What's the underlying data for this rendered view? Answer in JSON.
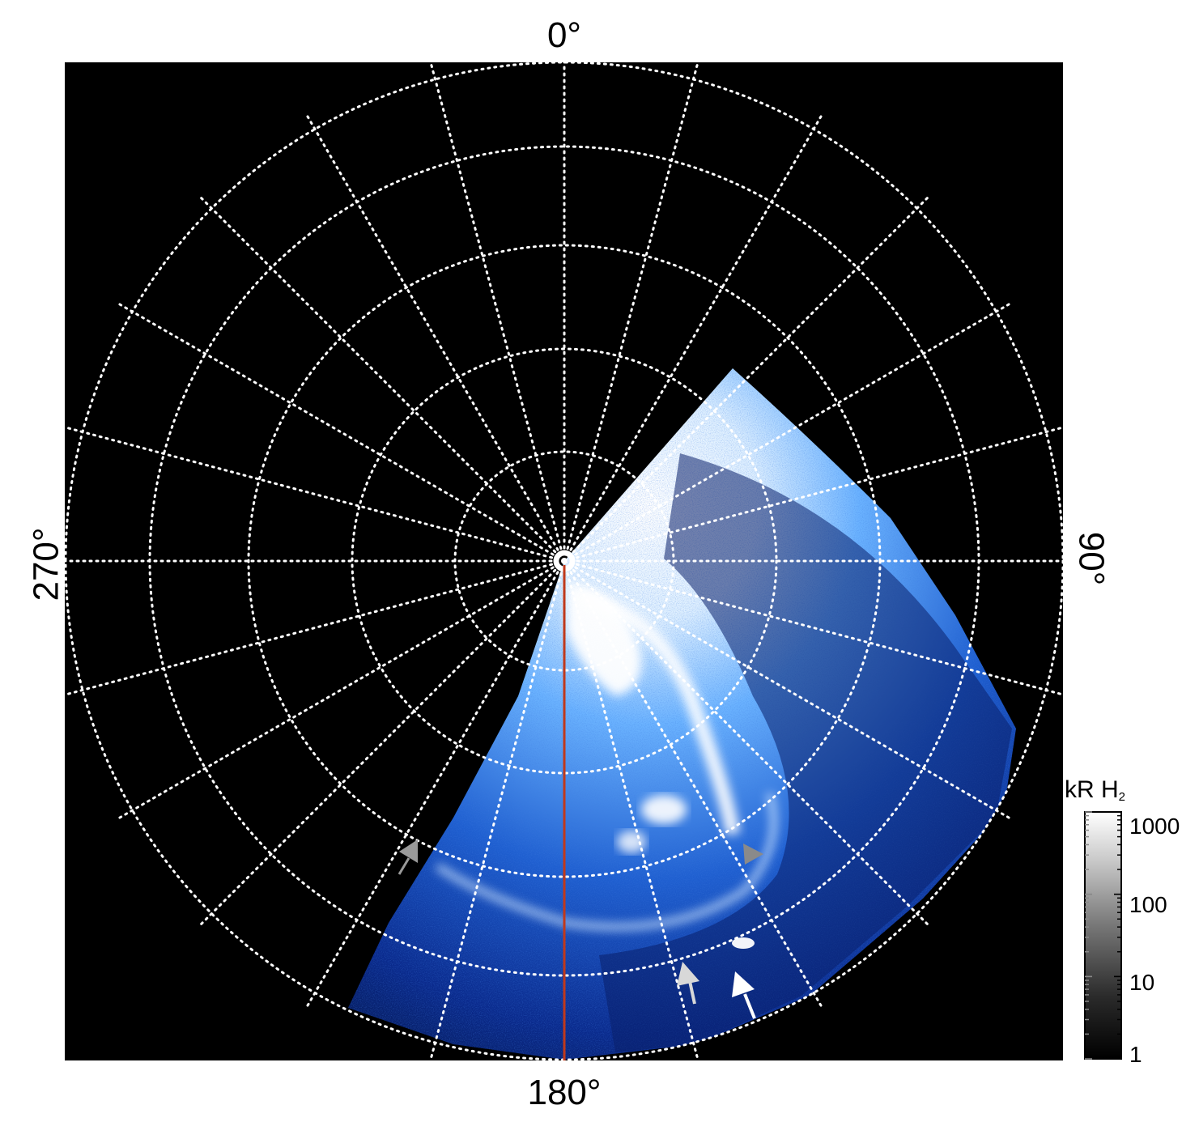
{
  "axis_labels": {
    "top": "0°",
    "bottom": "180°",
    "left": "270°",
    "right": "90°"
  },
  "colorbar": {
    "title_main": "kR H",
    "title_sub": "2",
    "ticks": [
      "1000",
      "100",
      "10",
      "1"
    ],
    "scale": "log",
    "range": [
      1,
      1000
    ],
    "colors": [
      "#000000",
      "#ffffff"
    ]
  },
  "plot": {
    "background": "#000000",
    "grid_style": "dotted",
    "grid_color": "#ffffff",
    "meridian_line_color": "#c0391b",
    "emission_colors": [
      "#0a2a8c",
      "#1f6fe0",
      "#9fd0ff",
      "#ffffff"
    ]
  },
  "arrows": [
    {
      "name": "arrow-left-dim",
      "color": "#9a9a9a"
    },
    {
      "name": "arrow-right-dim",
      "color": "#8a8a8a"
    },
    {
      "name": "arrow-bottom-mid",
      "color": "#d8d8d8"
    },
    {
      "name": "arrow-bottom-right",
      "color": "#ffffff"
    }
  ]
}
